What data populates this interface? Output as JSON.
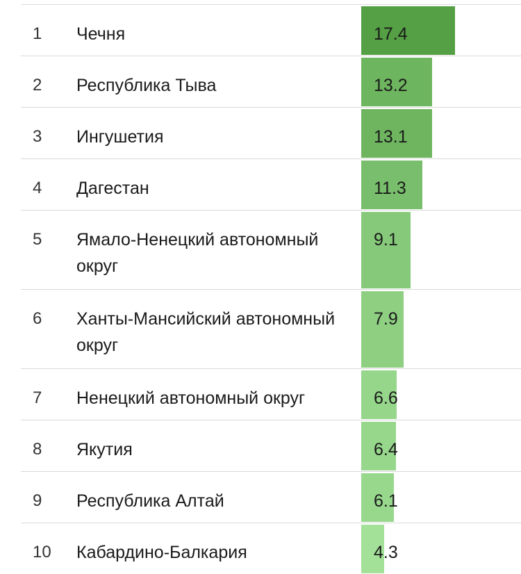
{
  "chart_data": {
    "type": "table",
    "columns": [
      "rank",
      "region",
      "value"
    ],
    "value_max": 17.4,
    "colors": {
      "high": "#55a044",
      "low": "#a3e199"
    },
    "rows": [
      {
        "rank": "1",
        "region": "Чечня",
        "value": 17.4
      },
      {
        "rank": "2",
        "region": "Республика Тыва",
        "value": 13.2
      },
      {
        "rank": "3",
        "region": "Ингушетия",
        "value": 13.1
      },
      {
        "rank": "4",
        "region": "Дагестан",
        "value": 11.3
      },
      {
        "rank": "5",
        "region": "Ямало-Ненецкий автономный округ",
        "value": 9.1
      },
      {
        "rank": "6",
        "region": "Ханты-Мансийский автономный округ",
        "value": 7.9
      },
      {
        "rank": "7",
        "region": "Ненецкий автономный округ",
        "value": 6.6
      },
      {
        "rank": "8",
        "region": "Якутия",
        "value": 6.4
      },
      {
        "rank": "9",
        "region": "Республика Алтай",
        "value": 6.1
      },
      {
        "rank": "10",
        "region": "Кабардино-Балкария",
        "value": 4.3
      }
    ]
  }
}
